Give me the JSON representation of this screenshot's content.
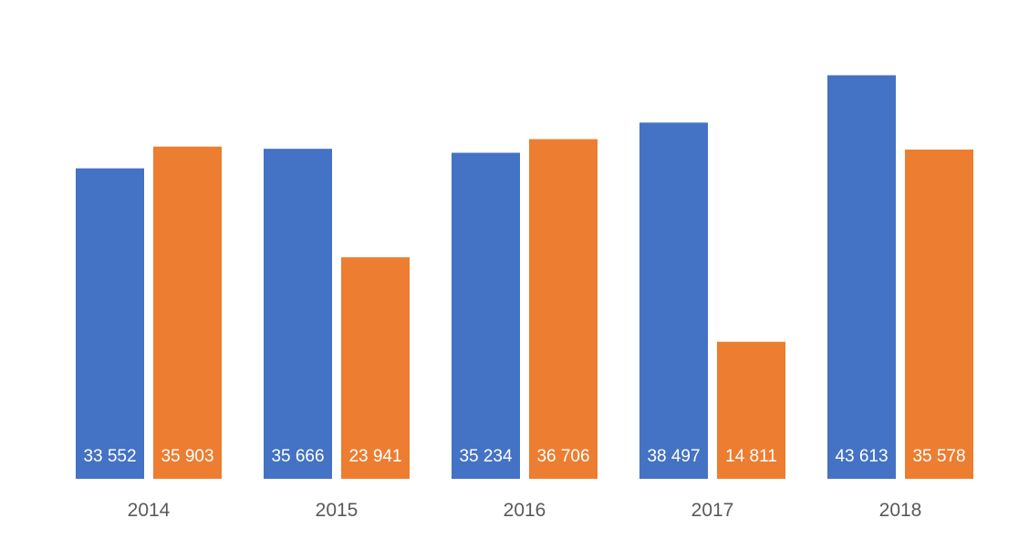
{
  "chart_data": {
    "type": "bar",
    "title": "",
    "xlabel": "",
    "ylabel": "",
    "categories": [
      "2014",
      "2015",
      "2016",
      "2017",
      "2018"
    ],
    "series": [
      {
        "color": "#4472C4",
        "values": [
          33552,
          35666,
          35234,
          38497,
          43613
        ],
        "labels": [
          "33 552",
          "35 666",
          "35 234",
          "38 497",
          "43 613"
        ]
      },
      {
        "color": "#ED7D31",
        "values": [
          35903,
          23941,
          36706,
          14811,
          35578
        ],
        "labels": [
          "35 903",
          "23 941",
          "36 706",
          "14 811",
          "35 578"
        ]
      }
    ],
    "ylim": [
      0,
      48000
    ],
    "grid": false,
    "legend": "none",
    "data_label_position": "inside-base"
  }
}
